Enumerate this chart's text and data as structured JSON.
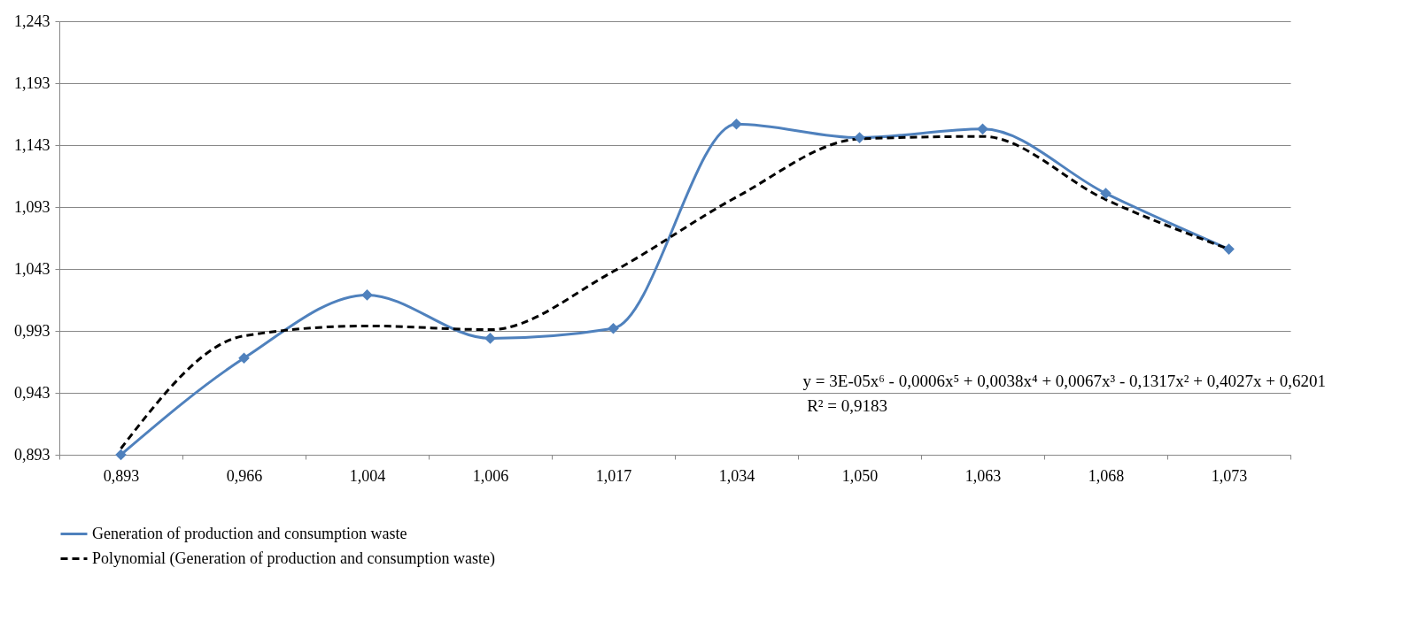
{
  "chart_data": {
    "type": "line",
    "categories": [
      "0,893",
      "0,966",
      "1,004",
      "1,006",
      "1,017",
      "1,034",
      "1,050",
      "1,063",
      "1,068",
      "1,073"
    ],
    "series": [
      {
        "name": "Generation of production and consumption waste",
        "color": "#4f81bd",
        "marker": "diamond",
        "line_style": "solid",
        "values": [
          0.893,
          0.971,
          1.022,
          0.987,
          0.995,
          1.16,
          1.149,
          1.156,
          1.104,
          1.059
        ]
      },
      {
        "name": "Polynomial (Generation of production and consumption waste)",
        "color": "#000000",
        "marker": "none",
        "line_style": "dashed",
        "values": [
          0.898,
          0.989,
          0.997,
          0.994,
          1.041,
          1.101,
          1.148,
          1.15,
          1.099,
          1.059
        ]
      }
    ],
    "ylim": [
      0.893,
      1.243
    ],
    "yticks": [
      {
        "value": 0.893,
        "label": "0,893"
      },
      {
        "value": 0.943,
        "label": "0,943"
      },
      {
        "value": 0.993,
        "label": "0,993"
      },
      {
        "value": 1.043,
        "label": "1,043"
      },
      {
        "value": 1.093,
        "label": "1,093"
      },
      {
        "value": 1.143,
        "label": "1,143"
      },
      {
        "value": 1.193,
        "label": "1,193"
      },
      {
        "value": 1.243,
        "label": "1,243"
      }
    ],
    "grid": "y",
    "legend": "bottom",
    "annotations": [
      "y = 3E-05x⁶  - 0,0006x⁵  + 0,0038x⁴  + 0,0067x³  - 0,1317x²  + 0,4027x  + 0,6201",
      "R² = 0,9183"
    ]
  }
}
